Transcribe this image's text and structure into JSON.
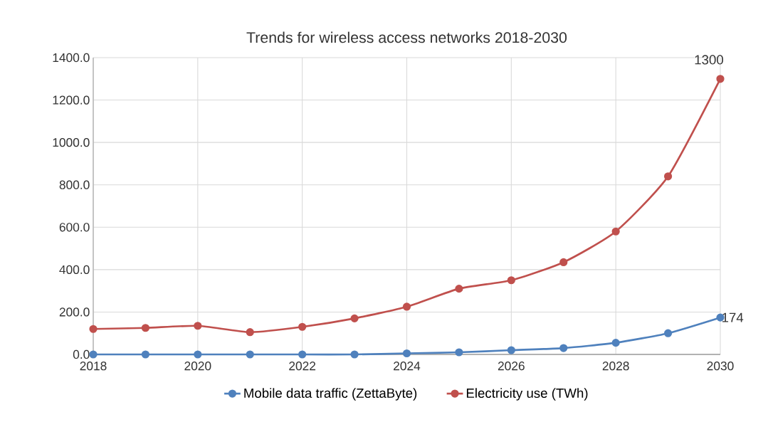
{
  "chart_data": {
    "type": "line",
    "title": "Trends for wireless access networks 2018-2030",
    "x": [
      2018,
      2019,
      2020,
      2021,
      2022,
      2023,
      2024,
      2025,
      2026,
      2027,
      2028,
      2029,
      2030
    ],
    "series": [
      {
        "name": "Mobile data traffic (ZettaByte)",
        "color": "#4f81bd",
        "values": [
          0,
          0,
          0,
          0,
          0,
          0,
          5,
          10,
          20,
          30,
          55,
          100,
          174
        ]
      },
      {
        "name": "Electricity use (TWh)",
        "color": "#c0504d",
        "values": [
          120,
          125,
          135,
          105,
          130,
          170,
          225,
          310,
          350,
          435,
          580,
          840,
          1300
        ]
      }
    ],
    "xlim": [
      2018,
      2030
    ],
    "xticks": [
      2018,
      2020,
      2022,
      2024,
      2026,
      2028,
      2030
    ],
    "ylim": [
      0,
      1400
    ],
    "yticks": [
      {
        "value": 0,
        "label": "0.0"
      },
      {
        "value": 200,
        "label": "200.0"
      },
      {
        "value": 400,
        "label": "400.0"
      },
      {
        "value": 600,
        "label": "600.0"
      },
      {
        "value": 800,
        "label": "800.0"
      },
      {
        "value": 1000,
        "label": "1000.0"
      },
      {
        "value": 1200,
        "label": "1200.0"
      },
      {
        "value": 1400,
        "label": "1400.0"
      }
    ],
    "annotations": [
      {
        "text": "1300",
        "x": 2030,
        "y": 1300
      },
      {
        "text": "174",
        "x": 2030,
        "y": 174
      }
    ],
    "grid": true,
    "legend": "bottom",
    "marker": "circle",
    "line_style": "solid"
  }
}
